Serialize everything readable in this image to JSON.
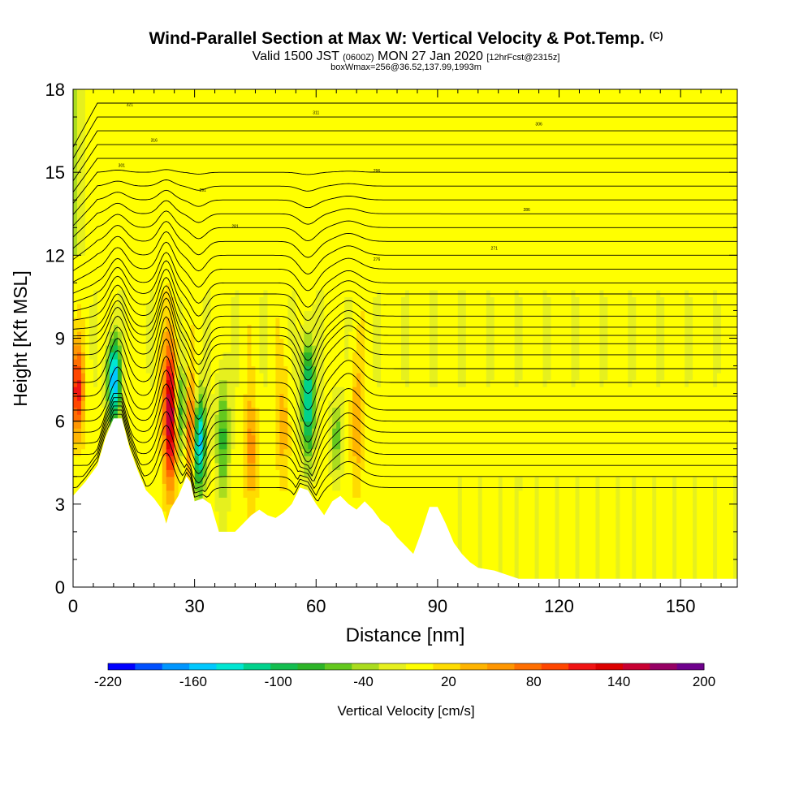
{
  "title": "Wind-Parallel Section at Max W: Vertical Velocity & Pot.Temp.",
  "copyright": "(C)",
  "valid_line": {
    "prefix": "Valid 1500 JST",
    "utc": "(0600Z)",
    "date": "MON 27 Jan 2020",
    "forecast": "[12hrFcst@2315z]"
  },
  "box_line": "boxWmax=256@36.52,137.99,1993m",
  "chart_data": {
    "type": "heatmap",
    "xlabel": "Distance [nm]",
    "ylabel": "Height [Kft MSL]",
    "xlim": [
      0,
      164
    ],
    "ylim": [
      0,
      18
    ],
    "xticks": [
      0,
      30,
      60,
      90,
      120,
      150
    ],
    "yticks": [
      0,
      3,
      6,
      9,
      12,
      15,
      18
    ],
    "terrain_kft": [
      [
        0,
        3.3
      ],
      [
        3,
        3.8
      ],
      [
        6,
        4.4
      ],
      [
        8,
        5.4
      ],
      [
        10,
        6.1
      ],
      [
        12,
        6.1
      ],
      [
        14,
        5.0
      ],
      [
        16,
        4.2
      ],
      [
        18,
        3.5
      ],
      [
        20,
        3.2
      ],
      [
        22,
        2.8
      ],
      [
        23,
        2.3
      ],
      [
        24,
        2.8
      ],
      [
        26,
        3.3
      ],
      [
        28,
        4.0
      ],
      [
        29,
        3.8
      ],
      [
        30,
        3.1
      ],
      [
        32,
        3.2
      ],
      [
        34,
        3.0
      ],
      [
        35,
        2.5
      ],
      [
        36,
        2.0
      ],
      [
        40,
        2.0
      ],
      [
        42,
        2.3
      ],
      [
        44,
        2.6
      ],
      [
        46,
        2.8
      ],
      [
        48,
        2.6
      ],
      [
        50,
        2.5
      ],
      [
        52,
        2.7
      ],
      [
        54,
        3.0
      ],
      [
        56,
        3.6
      ],
      [
        58,
        3.5
      ],
      [
        60,
        3.0
      ],
      [
        62,
        2.6
      ],
      [
        64,
        3.1
      ],
      [
        66,
        3.3
      ],
      [
        68,
        3.0
      ],
      [
        70,
        2.8
      ],
      [
        72,
        3.1
      ],
      [
        74,
        2.8
      ],
      [
        76,
        2.4
      ],
      [
        78,
        2.2
      ],
      [
        80,
        1.8
      ],
      [
        82,
        1.5
      ],
      [
        84,
        1.2
      ],
      [
        86,
        2.0
      ],
      [
        88,
        2.9
      ],
      [
        90,
        2.9
      ],
      [
        92,
        2.3
      ],
      [
        94,
        1.6
      ],
      [
        96,
        1.2
      ],
      [
        98,
        0.9
      ],
      [
        100,
        0.7
      ],
      [
        104,
        0.6
      ],
      [
        108,
        0.4
      ],
      [
        110,
        0.3
      ],
      [
        164,
        0.3
      ]
    ],
    "updraft_cores": [
      {
        "x": 1,
        "z_range": [
          5.5,
          8.8
        ],
        "w_cms": 120
      },
      {
        "x": 24,
        "z_range": [
          3.5,
          9.0
        ],
        "w_cms": 180
      },
      {
        "x": 29,
        "z_range": [
          4.0,
          7.5
        ],
        "w_cms": 140
      },
      {
        "x": 44,
        "z_range": [
          3.0,
          7.0
        ],
        "w_cms": 60
      },
      {
        "x": 52,
        "z_range": [
          3.5,
          8.0
        ],
        "w_cms": 40
      },
      {
        "x": 70,
        "z_range": [
          3.5,
          8.5
        ],
        "w_cms": 50
      }
    ],
    "downdraft_cores": [
      {
        "x": 10,
        "z_range": [
          6.0,
          9.0
        ],
        "w_cms": -180
      },
      {
        "x": 27,
        "z_range": [
          4.5,
          8.0
        ],
        "w_cms": -100
      },
      {
        "x": 31,
        "z_range": [
          3.5,
          7.0
        ],
        "w_cms": -180
      },
      {
        "x": 37,
        "z_range": [
          3.0,
          8.0
        ],
        "w_cms": -80
      },
      {
        "x": 58,
        "z_range": [
          4.5,
          9.2
        ],
        "w_cms": -140
      },
      {
        "x": 65,
        "z_range": [
          4.0,
          7.0
        ],
        "w_cms": -60
      }
    ],
    "colorbar": {
      "label": "Vertical Velocity [cm/s]",
      "tick_labels": [
        "-220",
        "-160",
        "-100",
        "-40",
        "20",
        "80",
        "140",
        "200"
      ],
      "levels": [
        -220,
        -200,
        -180,
        -160,
        -140,
        -120,
        -100,
        -80,
        -60,
        -40,
        -20,
        0,
        20,
        40,
        60,
        80,
        100,
        120,
        140,
        160,
        180,
        200
      ],
      "colors": [
        "#0000ff",
        "#0050ff",
        "#0096ff",
        "#00c8ff",
        "#00e6d2",
        "#00d28c",
        "#14be50",
        "#2db428",
        "#64c81e",
        "#aadc1e",
        "#e6f01e",
        "#ffff00",
        "#ffdc00",
        "#ffb400",
        "#ff9600",
        "#ff6e00",
        "#ff4600",
        "#f01414",
        "#dc0000",
        "#c80032",
        "#960064",
        "#6e008c"
      ]
    },
    "contour_label_values": [
      "321",
      "316",
      "311",
      "306",
      "301",
      "296",
      "291",
      "286",
      "281",
      "276",
      "271"
    ]
  }
}
